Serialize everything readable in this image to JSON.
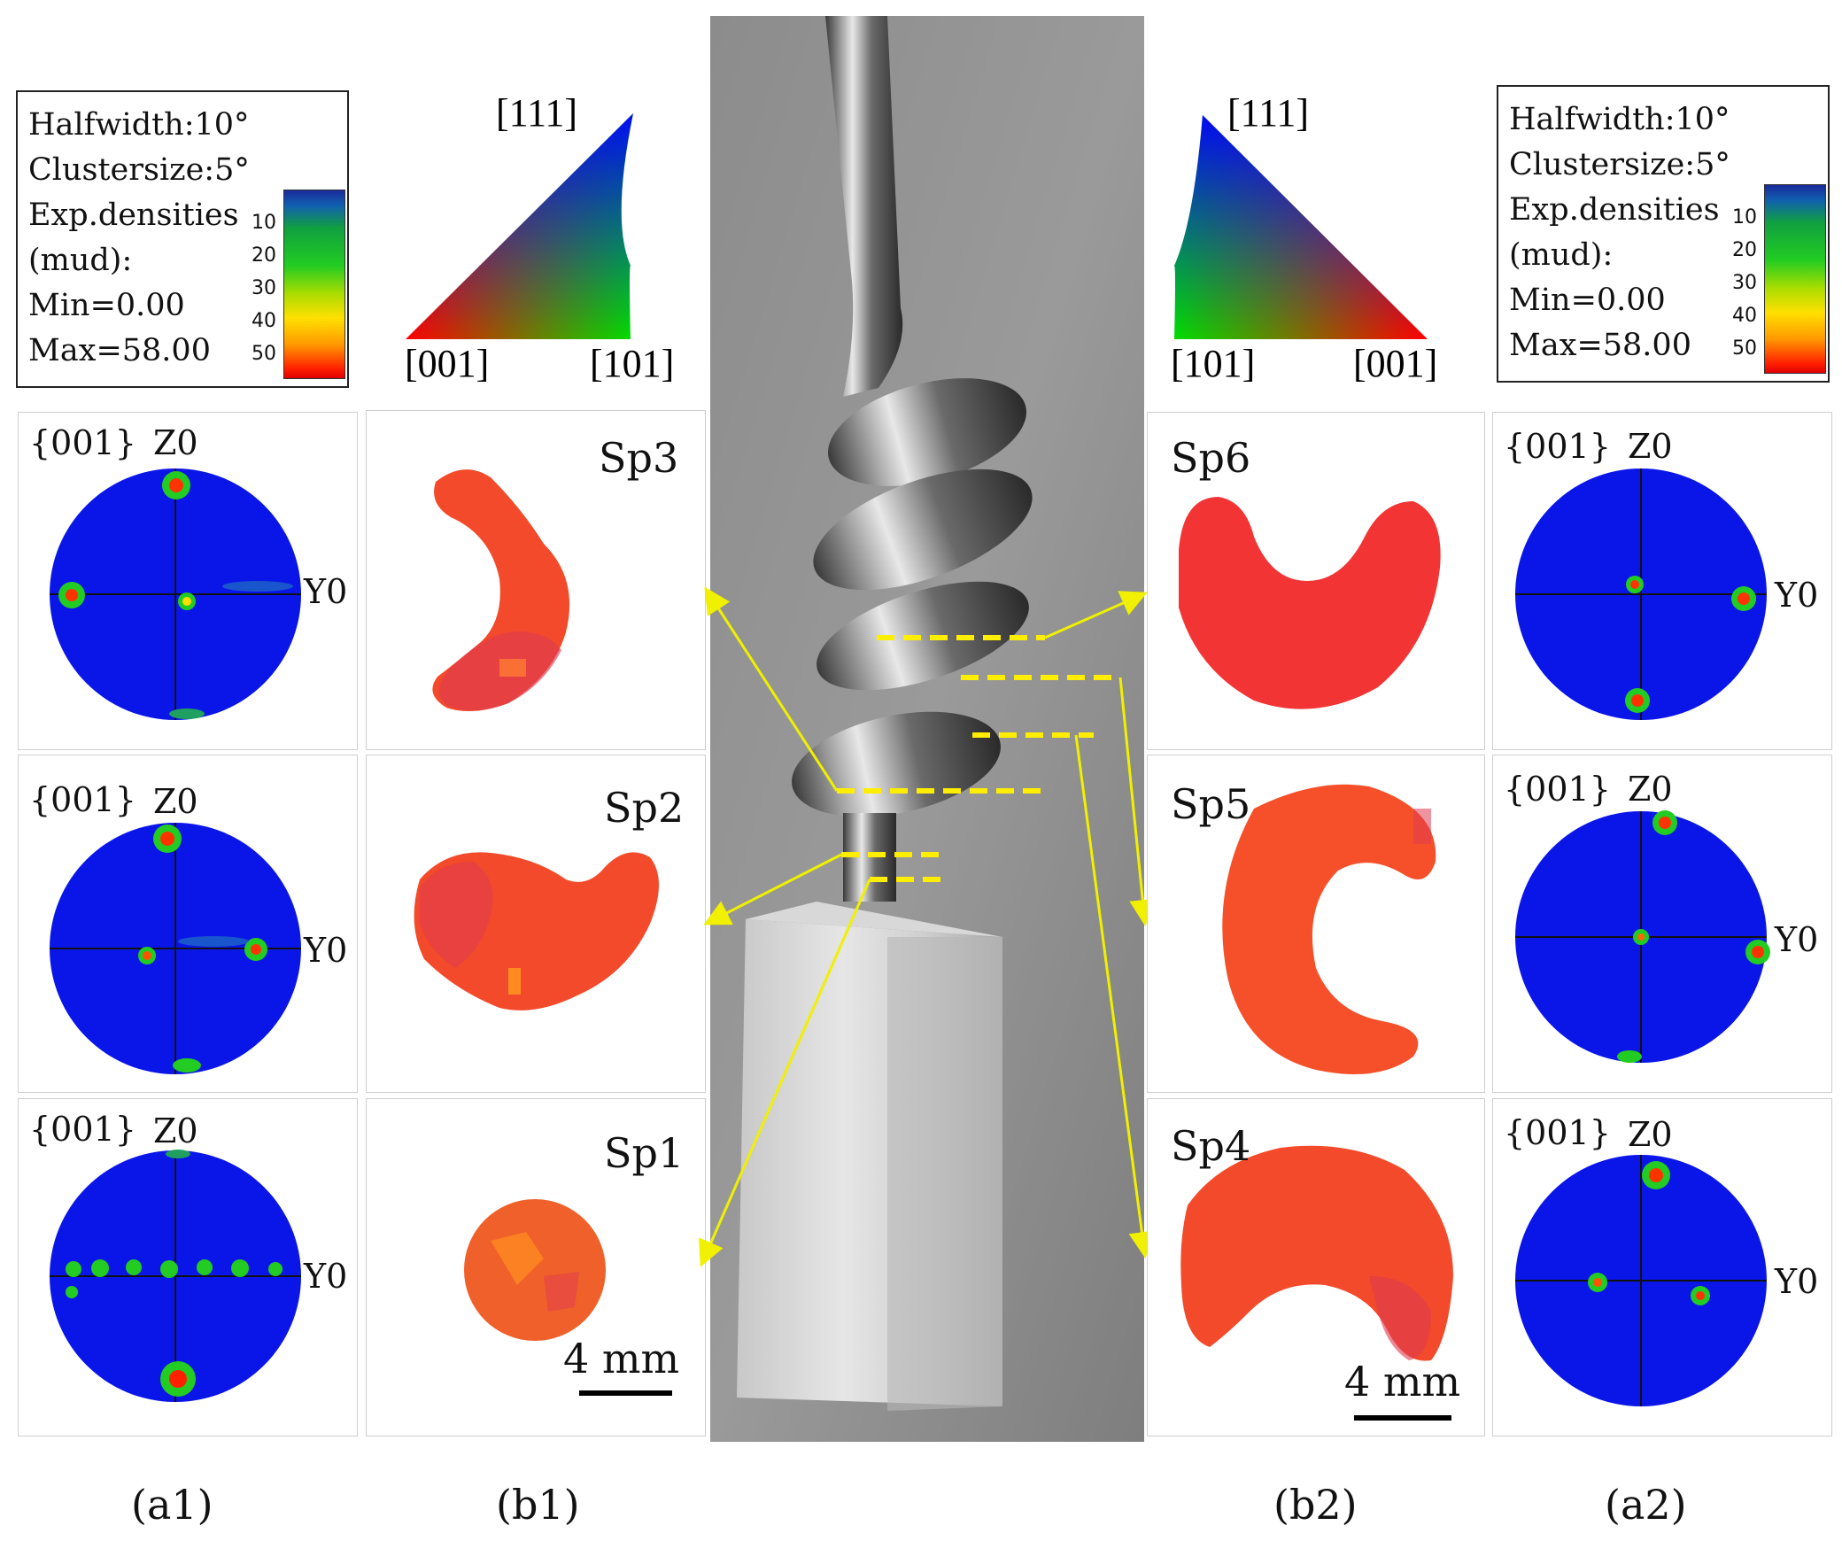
{
  "legend_left": {
    "lines": [
      "Halfwidth:10°",
      "Clustersize:5°",
      "Exp.densities",
      "(mud):",
      "Min=0.00",
      "Max=58.00"
    ],
    "ticks": [
      "10",
      "20",
      "30",
      "40",
      "50"
    ]
  },
  "legend_right": {
    "lines": [
      "Halfwidth:10°",
      "Clustersize:5°",
      "Exp.densities",
      "(mud):",
      "Min=0.00",
      "Max=58.00"
    ],
    "ticks": [
      "10",
      "20",
      "30",
      "40",
      "50"
    ]
  },
  "ipf_left": {
    "top": "[111]",
    "bl": "[001]",
    "br": "[101]"
  },
  "ipf_right": {
    "top": "[111]",
    "bl": "[101]",
    "br": "[001]"
  },
  "pole_label": "{001}",
  "z_label": "Z0",
  "y_label": "Y0",
  "samples": {
    "sp1": "Sp1",
    "sp2": "Sp2",
    "sp3": "Sp3",
    "sp4": "Sp4",
    "sp5": "Sp5",
    "sp6": "Sp6"
  },
  "scale_left": "4 mm",
  "scale_right": "4 mm",
  "captions": {
    "a1": "(a1)",
    "b1": "(b1)",
    "b2": "(b2)",
    "a2": "(a2)"
  },
  "colors": {
    "pole_blue": "#0a16e8",
    "map_red": "#f24a2a",
    "arrow": "#f0f000",
    "dash": "#ffee00"
  }
}
